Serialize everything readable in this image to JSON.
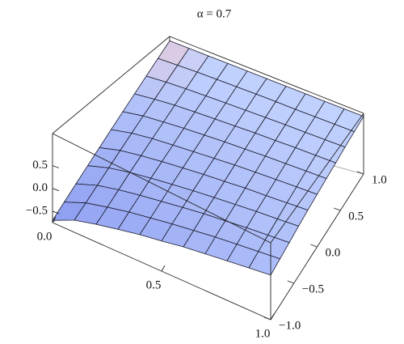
{
  "chart_data": {
    "type": "surface",
    "title": "α = 0.7",
    "x": [
      0,
      0.1,
      0.2,
      0.3,
      0.4,
      0.5,
      0.6,
      0.7,
      0.8,
      0.9,
      1
    ],
    "y": [
      -1,
      -0.8,
      -0.6,
      -0.4,
      -0.2,
      0,
      0.2,
      0.4,
      0.6,
      0.8,
      1
    ],
    "z": [
      [
        -0.7,
        -0.52,
        -0.34,
        -0.16,
        0.02,
        0.2,
        0.38,
        0.56,
        0.74,
        0.92,
        1.1
      ],
      [
        -0.48,
        -0.33,
        -0.17,
        -0.01,
        0.15,
        0.31,
        0.47,
        0.62,
        0.78,
        0.94,
        1.1
      ],
      [
        -0.35,
        -0.21,
        -0.06,
        0.09,
        0.23,
        0.38,
        0.52,
        0.67,
        0.81,
        0.96,
        1.1
      ],
      [
        -0.24,
        -0.1,
        0.03,
        0.17,
        0.3,
        0.43,
        0.57,
        0.7,
        0.83,
        0.97,
        1.1
      ],
      [
        -0.13,
        -0.01,
        0.11,
        0.24,
        0.36,
        0.48,
        0.61,
        0.73,
        0.85,
        0.98,
        1.1
      ],
      [
        -0.04,
        0.08,
        0.19,
        0.31,
        0.42,
        0.53,
        0.65,
        0.76,
        0.87,
        0.99,
        1.1
      ],
      [
        0.06,
        0.16,
        0.27,
        0.37,
        0.47,
        0.58,
        0.68,
        0.79,
        0.89,
        1.0,
        1.1
      ],
      [
        0.14,
        0.24,
        0.33,
        0.43,
        0.53,
        0.62,
        0.72,
        0.81,
        0.91,
        1.0,
        1.1
      ],
      [
        0.22,
        0.31,
        0.4,
        0.49,
        0.57,
        0.66,
        0.75,
        0.84,
        0.92,
        1.01,
        1.1
      ],
      [
        0.3,
        0.38,
        0.46,
        0.54,
        0.62,
        0.7,
        0.78,
        0.86,
        0.94,
        1.02,
        1.1
      ],
      [
        0.38,
        0.45,
        0.52,
        0.6,
        0.67,
        0.74,
        0.81,
        0.88,
        0.96,
        1.03,
        1.1
      ]
    ],
    "xlim": [
      0,
      1
    ],
    "ylim": [
      -1,
      1
    ],
    "zlim": [
      -0.75,
      1.2
    ],
    "xticks": [
      {
        "value": 0,
        "label": "0.0"
      },
      {
        "value": 0.5,
        "label": "0.5"
      },
      {
        "value": 1,
        "label": "1.0"
      }
    ],
    "yticks": [
      {
        "value": -1,
        "label": "−1.0"
      },
      {
        "value": -0.5,
        "label": "−0.5"
      },
      {
        "value": 0,
        "label": "0.0"
      },
      {
        "value": 0.5,
        "label": "0.5"
      },
      {
        "value": 1,
        "label": "1.0"
      }
    ],
    "zticks": [
      {
        "value": -0.5,
        "label": "−0.5"
      },
      {
        "value": 0,
        "label": "0.0"
      },
      {
        "value": 0.5,
        "label": "0.5"
      }
    ],
    "colors": [
      "#8a9af0",
      "#c6d6ff"
    ]
  }
}
